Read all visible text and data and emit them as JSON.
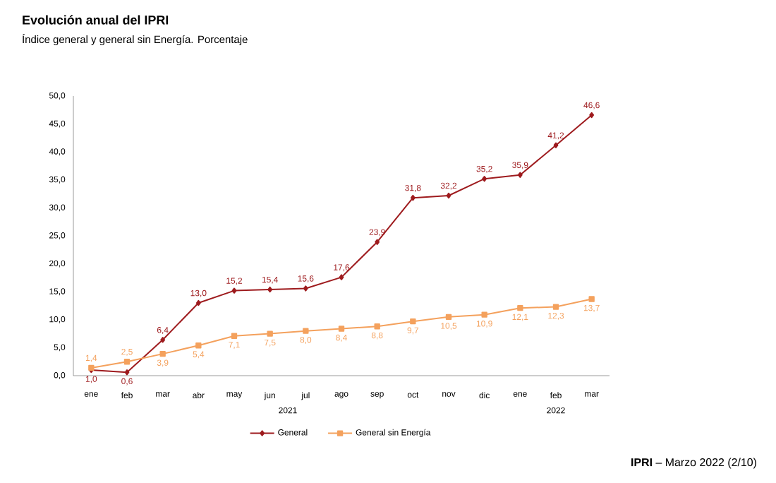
{
  "chart_data": {
    "type": "line",
    "title": "Evolución anual del IPRI",
    "subtitle": "Índice general y general sin Energía. Porcentaje",
    "categories": [
      "ene",
      "feb",
      "mar",
      "abr",
      "may",
      "jun",
      "jul",
      "ago",
      "sep",
      "oct",
      "nov",
      "dic",
      "ene",
      "feb",
      "mar"
    ],
    "series": [
      {
        "name": "General",
        "color": "#9e1b1e",
        "marker": "diamond",
        "values": [
          1.0,
          0.6,
          6.4,
          13.0,
          15.2,
          15.4,
          15.6,
          17.6,
          23.9,
          31.8,
          32.2,
          35.2,
          35.9,
          41.2,
          46.6
        ],
        "value_labels": [
          "1,0",
          "0,6",
          "6,4",
          "13,0",
          "15,2",
          "15,4",
          "15,6",
          "17,6",
          "23,9",
          "31,8",
          "32,2",
          "35,2",
          "35,9",
          "41,2",
          "46,6"
        ]
      },
      {
        "name": "General sin Energía",
        "color": "#f4a15d",
        "marker": "square",
        "values": [
          1.4,
          2.5,
          3.9,
          5.4,
          7.1,
          7.5,
          8.0,
          8.4,
          8.8,
          9.7,
          10.5,
          10.9,
          12.1,
          12.3,
          13.7
        ],
        "value_labels": [
          "1,4",
          "2,5",
          "3,9",
          "5,4",
          "7,1",
          "7,5",
          "8,0",
          "8,4",
          "8,8",
          "9,7",
          "10,5",
          "10,9",
          "12,1",
          "12,3",
          "13,7"
        ]
      }
    ],
    "ylim": [
      0,
      50
    ],
    "yticks": [
      {
        "value": 0,
        "label": "0,0"
      },
      {
        "value": 5,
        "label": "5,0"
      },
      {
        "value": 10,
        "label": "10,0"
      },
      {
        "value": 15,
        "label": "15,0"
      },
      {
        "value": 20,
        "label": "20,0"
      },
      {
        "value": 25,
        "label": "25,0"
      },
      {
        "value": 30,
        "label": "30,0"
      },
      {
        "value": 35,
        "label": "35,0"
      },
      {
        "value": 40,
        "label": "40,0"
      },
      {
        "value": 45,
        "label": "45,0"
      },
      {
        "value": 50,
        "label": "50,0"
      }
    ],
    "legend": "bottom",
    "annotations": [
      "2021",
      "2022",
      "**IPRI** – Marzo 2022 (2/10)"
    ]
  }
}
